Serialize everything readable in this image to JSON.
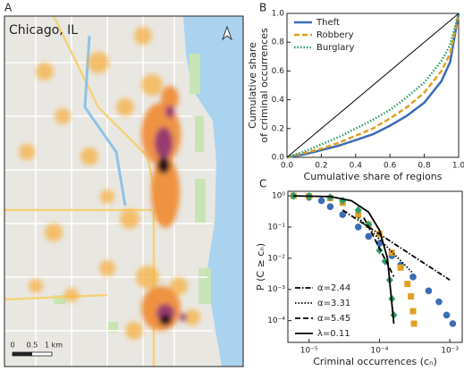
{
  "map": {
    "label": "A",
    "title": "Chicago, IL",
    "scale_labels": [
      "0",
      "0.5",
      "1 km"
    ]
  },
  "chart_data": [
    {
      "label": "B",
      "type": "line",
      "xlabel": "Cumulative share of regions",
      "ylabel": [
        "Cumulative share",
        "of criminal occurrences"
      ],
      "x": [
        0,
        0.1,
        0.2,
        0.3,
        0.4,
        0.5,
        0.6,
        0.7,
        0.8,
        0.9,
        0.95,
        1
      ],
      "xlim": [
        0,
        1
      ],
      "ylim": [
        0,
        1
      ],
      "xticks": [
        {
          "value": 0,
          "label": "0.0"
        },
        0.2,
        0.4,
        0.6,
        0.8,
        {
          "value": 1,
          "label": "1.0"
        }
      ],
      "yticks": [
        {
          "value": 0,
          "label": "0.0"
        },
        0.2,
        0.4,
        0.6,
        0.8,
        {
          "value": 1,
          "label": "1.0"
        }
      ],
      "legend": "upper left",
      "series": [
        {
          "name": "Theft",
          "color": "#3b6db5",
          "dash": "solid",
          "values": [
            0,
            0.02,
            0.05,
            0.08,
            0.12,
            0.16,
            0.22,
            0.29,
            0.38,
            0.53,
            0.66,
            1
          ]
        },
        {
          "name": "Robbery",
          "color": "#e0a024",
          "dash": "dashed",
          "values": [
            0,
            0.03,
            0.06,
            0.1,
            0.15,
            0.2,
            0.27,
            0.35,
            0.45,
            0.6,
            0.72,
            1
          ]
        },
        {
          "name": "Burglary",
          "color": "#2e9e6a",
          "dash": "dotted",
          "values": [
            0,
            0.04,
            0.09,
            0.14,
            0.2,
            0.26,
            0.33,
            0.42,
            0.52,
            0.67,
            0.78,
            1
          ]
        },
        {
          "color": "#000000",
          "dash": "solid",
          "values": [
            0,
            0.1,
            0.2,
            0.3,
            0.4,
            0.5,
            0.6,
            0.7,
            0.8,
            0.9,
            0.95,
            1
          ]
        }
      ]
    },
    {
      "label": "C",
      "type": "scatter",
      "log_x": true,
      "log_y": true,
      "xlabel": "Criminal occurrences (cₙ)",
      "ylabel": "P (C ≥ cₙ)",
      "xlim": [
        5e-06,
        0.0015
      ],
      "ylim": [
        2e-05,
        1.4
      ],
      "xticks": [
        {
          "value": 1e-05,
          "label": "10⁻⁵"
        },
        {
          "value": 0.0001,
          "label": "10⁻⁴"
        },
        {
          "value": 0.001,
          "label": "10⁻³"
        }
      ],
      "yticks": [
        {
          "value": 1,
          "label": "10⁰"
        },
        {
          "value": 0.1,
          "label": "10⁻¹"
        },
        {
          "value": 0.01,
          "label": "10⁻²"
        },
        {
          "value": 0.001,
          "label": "10⁻³"
        },
        {
          "value": 0.0001,
          "label": "10⁻⁴"
        }
      ],
      "legend": "lower left",
      "series": [
        {
          "name": "Theft",
          "color": "#3b6db5",
          "marker": "circle",
          "x": [
            6e-06,
            1e-05,
            1.5e-05,
            2e-05,
            3e-05,
            5e-05,
            7e-05,
            0.0001,
            0.00015,
            0.0002,
            0.0003,
            0.0005,
            0.0007,
            0.0009,
            0.0011
          ],
          "values": [
            1,
            0.9,
            0.7,
            0.45,
            0.25,
            0.1,
            0.05,
            0.03,
            0.012,
            0.006,
            0.0025,
            0.0009,
            0.0004,
            0.00015,
            8e-05
          ]
        },
        {
          "name": "Robbery",
          "color": "#e0a024",
          "marker": "square",
          "x": [
            6e-06,
            1e-05,
            2e-05,
            3e-05,
            5e-05,
            7e-05,
            0.0001,
            0.00015,
            0.0002,
            0.00025,
            0.00028,
            0.0003,
            0.00031
          ],
          "values": [
            1,
            0.97,
            0.85,
            0.6,
            0.25,
            0.12,
            0.06,
            0.015,
            0.005,
            0.0015,
            0.0006,
            0.0002,
            8e-05
          ]
        },
        {
          "name": "Burglary",
          "color": "#2e9e6a",
          "marker": "diamond",
          "x": [
            6e-06,
            1e-05,
            2e-05,
            3e-05,
            5e-05,
            7e-05,
            0.0001,
            0.00012,
            0.00014,
            0.00015,
            0.00016
          ],
          "values": [
            1,
            0.98,
            0.9,
            0.7,
            0.35,
            0.12,
            0.018,
            0.008,
            0.002,
            0.0005,
            0.00015
          ]
        }
      ],
      "fit_lines": [
        {
          "name": "α=2.44",
          "color": "#000000",
          "dash": "dashdot",
          "x": [
            3e-05,
            0.001
          ],
          "values": [
            0.35,
            0.002
          ]
        },
        {
          "name": "α=3.31",
          "color": "#000000",
          "dash": "dotted",
          "x": [
            5e-05,
            0.0003
          ],
          "values": [
            0.2,
            0.0033
          ]
        },
        {
          "name": "α=5.45",
          "color": "#000000",
          "dash": "dashed",
          "x": [
            6e-05,
            0.00016
          ],
          "values": [
            0.2,
            0.0026
          ]
        },
        {
          "name": "λ=0.11",
          "color": "#000000",
          "dash": "solid",
          "x": [
            6e-06,
            2e-05,
            4e-05,
            7e-05,
            0.0001,
            0.00013,
            0.00016
          ],
          "values": [
            1,
            0.95,
            0.7,
            0.3,
            0.08,
            0.01,
            8e-05
          ]
        }
      ]
    }
  ]
}
